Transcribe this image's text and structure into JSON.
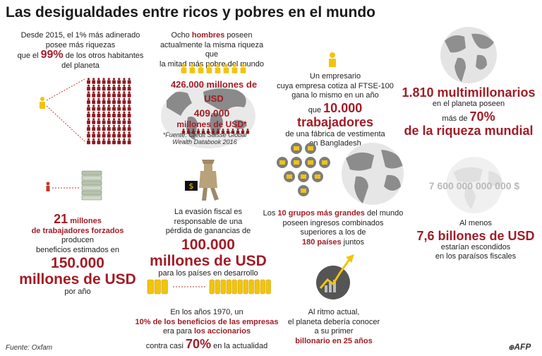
{
  "title": "Las desigualdades entre ricos y pobres en el mundo",
  "block1": {
    "l1": "Desde 2015, el 1% más adinerado",
    "l2": "posee más riquezas",
    "l3a": "que el ",
    "pct": "99%",
    "l3b": " de los otros habitantes",
    "l4": "del planeta"
  },
  "block2": {
    "l1": "Ocho ",
    "hombres": "hombres",
    "l1b": " poseen",
    "l2": "actualmente la misma riqueza que",
    "l3": "la mitad más pobre del mundo",
    "amount_rich": "426.000 millones de USD",
    "amount_poor_1": "409.000",
    "amount_poor_2": "millones de USD*",
    "source_1": "*Fuente: Credit Suisse Global",
    "source_2": "Wealth Databook 2016"
  },
  "block3": {
    "l1": "Un empresario",
    "l2": "cuya empresa cotiza al FTSE-100",
    "l3": "gana lo mismo en un año",
    "l4a": "que ",
    "workers": "10.000 trabajadores",
    "l5": "de una fábrica de vestimenta",
    "l6": "en Bangladesh"
  },
  "block4": {
    "big": "1.810 multimillonarios",
    "l2": "en el planeta poseen",
    "l3a": "más de ",
    "pct": "70%",
    "big2": "de la riqueza mundial"
  },
  "block5": {
    "num": "21",
    "l1b": " millones",
    "l2": "de trabajadores forzados",
    "l3": "producen",
    "l4": "beneficios estimados en",
    "big1": "150.000",
    "big2": "millones de USD",
    "l5": "por año"
  },
  "block6": {
    "l1": "La evasión fiscal es",
    "l2": "responsable de una",
    "l3": "pérdida de ganancias de",
    "big1": "100.000",
    "big2": "millones de USD",
    "l4": "para los países en desarrollo"
  },
  "block7": {
    "l1a": "Los ",
    "groups": "10 grupos más grandes",
    "l1b": " del mundo",
    "l2": "poseen ingresos combinados",
    "l3": "superiores a los de",
    "countries": "180 países",
    "l4b": " juntos"
  },
  "block8": {
    "money": "7 600 000 000 000 $",
    "l1": "Al menos",
    "big": "7,6 billones de USD",
    "l2": "estarían escondidos",
    "l3": "en los paraísos fiscales"
  },
  "block9": {
    "l1": "En los años 1970, un",
    "l2": "10% de los beneficios de las empresas",
    "l3a": "era para ",
    "shareholders": "los accionarios",
    "l4a": "contra casi ",
    "pct": "70%",
    "l4b": " en la actualidad"
  },
  "block10": {
    "l1": "Al ritmo actual,",
    "l2": "el planeta debería conocer",
    "l3": "a su primer",
    "l4": "billonario en 25 años"
  },
  "footer": {
    "source": "Fuente: Oxfam",
    "logo": "AFP"
  }
}
